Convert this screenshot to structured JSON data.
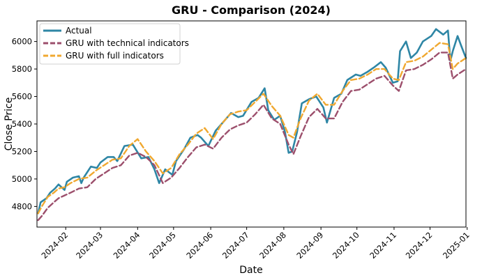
{
  "chart_data": {
    "type": "line",
    "title": "GRU - Comparison (2024)",
    "xlabel": "Date",
    "ylabel": "Close Price",
    "ylim": [
      4650,
      6150
    ],
    "xlim": [
      "2024-01-08",
      "2024-12-31"
    ],
    "grid": false,
    "legend_position": "top-left",
    "y_ticks": [
      4800,
      5000,
      5200,
      5400,
      5600,
      5800,
      6000
    ],
    "x_ticks": [
      {
        "date": "2024-02-01",
        "label": "2024-02"
      },
      {
        "date": "2024-03-01",
        "label": "2024-03"
      },
      {
        "date": "2024-04-01",
        "label": "2024-04"
      },
      {
        "date": "2024-05-01",
        "label": "2024-05"
      },
      {
        "date": "2024-06-01",
        "label": "2024-06"
      },
      {
        "date": "2024-07-01",
        "label": "2024-07"
      },
      {
        "date": "2024-08-01",
        "label": "2024-08"
      },
      {
        "date": "2024-09-01",
        "label": "2024-09"
      },
      {
        "date": "2024-10-01",
        "label": "2024-10"
      },
      {
        "date": "2024-11-01",
        "label": "2024-11"
      },
      {
        "date": "2024-12-01",
        "label": "2024-12"
      },
      {
        "date": "2025-01-01",
        "label": "2025-01"
      }
    ],
    "series": [
      {
        "name": "Actual",
        "color": "#2e86a5",
        "style": "solid",
        "points": [
          [
            "2024-01-09",
            4750
          ],
          [
            "2024-01-11",
            4830
          ],
          [
            "2024-01-16",
            4860
          ],
          [
            "2024-01-19",
            4900
          ],
          [
            "2024-01-23",
            4930
          ],
          [
            "2024-01-26",
            4960
          ],
          [
            "2024-01-31",
            4920
          ],
          [
            "2024-02-02",
            4980
          ],
          [
            "2024-02-07",
            5010
          ],
          [
            "2024-02-12",
            5020
          ],
          [
            "2024-02-14",
            4970
          ],
          [
            "2024-02-16",
            5010
          ],
          [
            "2024-02-22",
            5090
          ],
          [
            "2024-02-27",
            5080
          ],
          [
            "2024-03-01",
            5120
          ],
          [
            "2024-03-07",
            5160
          ],
          [
            "2024-03-12",
            5160
          ],
          [
            "2024-03-15",
            5130
          ],
          [
            "2024-03-21",
            5240
          ],
          [
            "2024-03-28",
            5250
          ],
          [
            "2024-04-04",
            5150
          ],
          [
            "2024-04-10",
            5160
          ],
          [
            "2024-04-15",
            5070
          ],
          [
            "2024-04-19",
            4970
          ],
          [
            "2024-04-24",
            5070
          ],
          [
            "2024-04-30",
            5030
          ],
          [
            "2024-05-03",
            5130
          ],
          [
            "2024-05-10",
            5220
          ],
          [
            "2024-05-15",
            5300
          ],
          [
            "2024-05-21",
            5320
          ],
          [
            "2024-05-24",
            5300
          ],
          [
            "2024-05-30",
            5240
          ],
          [
            "2024-06-05",
            5350
          ],
          [
            "2024-06-12",
            5420
          ],
          [
            "2024-06-18",
            5480
          ],
          [
            "2024-06-24",
            5450
          ],
          [
            "2024-06-28",
            5460
          ],
          [
            "2024-07-05",
            5560
          ],
          [
            "2024-07-11",
            5590
          ],
          [
            "2024-07-16",
            5660
          ],
          [
            "2024-07-19",
            5500
          ],
          [
            "2024-07-24",
            5430
          ],
          [
            "2024-07-29",
            5460
          ],
          [
            "2024-08-02",
            5340
          ],
          [
            "2024-08-05",
            5190
          ],
          [
            "2024-08-08",
            5200
          ],
          [
            "2024-08-12",
            5340
          ],
          [
            "2024-08-16",
            5550
          ],
          [
            "2024-08-22",
            5580
          ],
          [
            "2024-08-28",
            5600
          ],
          [
            "2024-09-03",
            5520
          ],
          [
            "2024-09-06",
            5410
          ],
          [
            "2024-09-12",
            5590
          ],
          [
            "2024-09-18",
            5620
          ],
          [
            "2024-09-23",
            5720
          ],
          [
            "2024-09-30",
            5760
          ],
          [
            "2024-10-04",
            5750
          ],
          [
            "2024-10-10",
            5780
          ],
          [
            "2024-10-15",
            5810
          ],
          [
            "2024-10-21",
            5850
          ],
          [
            "2024-10-25",
            5810
          ],
          [
            "2024-10-31",
            5700
          ],
          [
            "2024-11-04",
            5710
          ],
          [
            "2024-11-06",
            5930
          ],
          [
            "2024-11-11",
            6000
          ],
          [
            "2024-11-15",
            5880
          ],
          [
            "2024-11-20",
            5920
          ],
          [
            "2024-11-25",
            6000
          ],
          [
            "2024-12-02",
            6040
          ],
          [
            "2024-12-06",
            6090
          ],
          [
            "2024-12-12",
            6050
          ],
          [
            "2024-12-16",
            6080
          ],
          [
            "2024-12-18",
            5860
          ],
          [
            "2024-12-20",
            5930
          ],
          [
            "2024-12-24",
            6040
          ],
          [
            "2024-12-27",
            5970
          ],
          [
            "2024-12-31",
            5880
          ]
        ]
      },
      {
        "name": "GRU with technical indicators",
        "color": "#9c4f6c",
        "style": "dashed",
        "points": [
          [
            "2024-01-09",
            4700
          ],
          [
            "2024-01-12",
            4730
          ],
          [
            "2024-01-17",
            4790
          ],
          [
            "2024-01-22",
            4830
          ],
          [
            "2024-01-26",
            4860
          ],
          [
            "2024-01-31",
            4880
          ],
          [
            "2024-02-05",
            4900
          ],
          [
            "2024-02-12",
            4930
          ],
          [
            "2024-02-19",
            4940
          ],
          [
            "2024-02-26",
            5000
          ],
          [
            "2024-03-04",
            5040
          ],
          [
            "2024-03-11",
            5080
          ],
          [
            "2024-03-18",
            5100
          ],
          [
            "2024-03-25",
            5170
          ],
          [
            "2024-04-01",
            5190
          ],
          [
            "2024-04-08",
            5160
          ],
          [
            "2024-04-15",
            5100
          ],
          [
            "2024-04-22",
            4970
          ],
          [
            "2024-04-29",
            5010
          ],
          [
            "2024-05-06",
            5080
          ],
          [
            "2024-05-13",
            5160
          ],
          [
            "2024-05-20",
            5230
          ],
          [
            "2024-05-27",
            5250
          ],
          [
            "2024-06-03",
            5220
          ],
          [
            "2024-06-10",
            5300
          ],
          [
            "2024-06-17",
            5360
          ],
          [
            "2024-06-24",
            5390
          ],
          [
            "2024-07-01",
            5410
          ],
          [
            "2024-07-08",
            5470
          ],
          [
            "2024-07-15",
            5540
          ],
          [
            "2024-07-22",
            5440
          ],
          [
            "2024-07-29",
            5400
          ],
          [
            "2024-08-05",
            5250
          ],
          [
            "2024-08-09",
            5180
          ],
          [
            "2024-08-15",
            5310
          ],
          [
            "2024-08-22",
            5450
          ],
          [
            "2024-08-29",
            5510
          ],
          [
            "2024-09-05",
            5440
          ],
          [
            "2024-09-12",
            5440
          ],
          [
            "2024-09-19",
            5560
          ],
          [
            "2024-09-26",
            5640
          ],
          [
            "2024-10-03",
            5650
          ],
          [
            "2024-10-10",
            5690
          ],
          [
            "2024-10-17",
            5730
          ],
          [
            "2024-10-24",
            5750
          ],
          [
            "2024-10-31",
            5680
          ],
          [
            "2024-11-05",
            5640
          ],
          [
            "2024-11-11",
            5790
          ],
          [
            "2024-11-18",
            5800
          ],
          [
            "2024-11-25",
            5830
          ],
          [
            "2024-12-02",
            5870
          ],
          [
            "2024-12-09",
            5920
          ],
          [
            "2024-12-16",
            5920
          ],
          [
            "2024-12-20",
            5730
          ],
          [
            "2024-12-24",
            5760
          ],
          [
            "2024-12-31",
            5800
          ]
        ]
      },
      {
        "name": "GRU with full indicators",
        "color": "#f0a830",
        "style": "dashed",
        "points": [
          [
            "2024-01-09",
            4750
          ],
          [
            "2024-01-12",
            4800
          ],
          [
            "2024-01-17",
            4870
          ],
          [
            "2024-01-22",
            4900
          ],
          [
            "2024-01-26",
            4930
          ],
          [
            "2024-01-31",
            4940
          ],
          [
            "2024-02-05",
            4970
          ],
          [
            "2024-02-12",
            5000
          ],
          [
            "2024-02-19",
            5010
          ],
          [
            "2024-02-26",
            5060
          ],
          [
            "2024-03-04",
            5100
          ],
          [
            "2024-03-11",
            5140
          ],
          [
            "2024-03-18",
            5150
          ],
          [
            "2024-03-25",
            5240
          ],
          [
            "2024-04-01",
            5290
          ],
          [
            "2024-04-08",
            5200
          ],
          [
            "2024-04-15",
            5130
          ],
          [
            "2024-04-22",
            5040
          ],
          [
            "2024-04-29",
            5080
          ],
          [
            "2024-05-06",
            5180
          ],
          [
            "2024-05-13",
            5250
          ],
          [
            "2024-05-20",
            5330
          ],
          [
            "2024-05-27",
            5370
          ],
          [
            "2024-06-03",
            5290
          ],
          [
            "2024-06-10",
            5400
          ],
          [
            "2024-06-17",
            5470
          ],
          [
            "2024-06-24",
            5490
          ],
          [
            "2024-07-01",
            5500
          ],
          [
            "2024-07-08",
            5560
          ],
          [
            "2024-07-15",
            5620
          ],
          [
            "2024-07-22",
            5530
          ],
          [
            "2024-07-29",
            5460
          ],
          [
            "2024-08-05",
            5320
          ],
          [
            "2024-08-09",
            5300
          ],
          [
            "2024-08-15",
            5440
          ],
          [
            "2024-08-22",
            5570
          ],
          [
            "2024-08-29",
            5620
          ],
          [
            "2024-09-05",
            5540
          ],
          [
            "2024-09-12",
            5540
          ],
          [
            "2024-09-19",
            5640
          ],
          [
            "2024-09-26",
            5720
          ],
          [
            "2024-10-03",
            5730
          ],
          [
            "2024-10-10",
            5760
          ],
          [
            "2024-10-17",
            5800
          ],
          [
            "2024-10-24",
            5800
          ],
          [
            "2024-10-31",
            5730
          ],
          [
            "2024-11-05",
            5720
          ],
          [
            "2024-11-11",
            5850
          ],
          [
            "2024-11-18",
            5860
          ],
          [
            "2024-11-25",
            5890
          ],
          [
            "2024-12-02",
            5940
          ],
          [
            "2024-12-09",
            5990
          ],
          [
            "2024-12-16",
            5980
          ],
          [
            "2024-12-20",
            5800
          ],
          [
            "2024-12-24",
            5840
          ],
          [
            "2024-12-31",
            5880
          ]
        ]
      }
    ]
  }
}
